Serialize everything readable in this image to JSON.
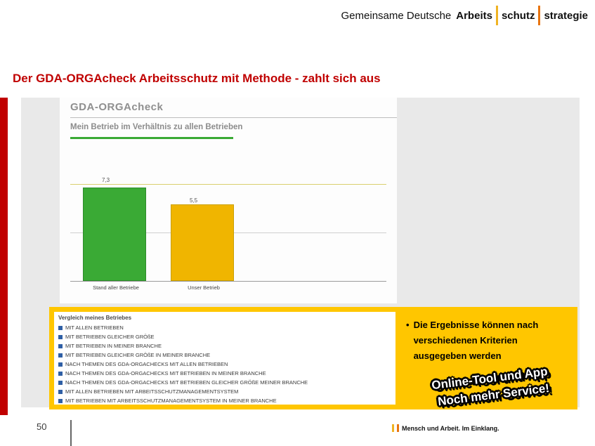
{
  "logo": {
    "prefix": "Gemeinsame Deutsche",
    "word1": "Arbeits",
    "word2": "schutz",
    "word3": "strategie",
    "bar1_color": "#f0b323",
    "bar2_color": "#e87511"
  },
  "title": "Der GDA-ORGAcheck Arbeitsschutz mit Methode - zahlt sich aus",
  "title_color": "#c00000",
  "screenshot": {
    "app_title": "GDA-ORGAcheck",
    "section_title": "Mein Betrieb im Verhältnis zu allen Betrieben",
    "bars": [
      {
        "label": "Stand aller Betriebe",
        "value": "7,3",
        "color": "#3aaa35"
      },
      {
        "label": "Unser Betrieb",
        "value": "5,5",
        "color": "#f0b500"
      }
    ]
  },
  "comparison": {
    "title": "Vergleich meines Betriebes",
    "items": [
      "MIT ALLEN BETRIEBEN",
      "MIT BETRIEBEN GLEICHER GRÖßE",
      "MIT BETRIEBEN IN MEINER BRANCHE",
      "MIT BETRIEBEN GLEICHER GRÖßE IN MEINER BRANCHE",
      "NACH THEMEN DES GDA-ORGACHECKS MIT ALLEN BETRIEBEN",
      "NACH THEMEN DES GDA-ORGACHECKS MIT BETRIEBEN IN MEINER BRANCHE",
      "NACH THEMEN DES GDA-ORGACHECKS MIT BETRIEBEN GLEICHER GRÖßE MEINER BRANCHE",
      "MIT ALLEN BETRIEBEN MIT ARBEITSSCHUTZMANAGEMENTSYSTEM",
      "MIT BETRIEBEN MIT ARBEITSSCHUTZMANAGEMENTSYSTEM IN MEINER BRANCHE"
    ]
  },
  "callout": {
    "bullet": "•",
    "text": "Die Ergebnisse können nach verschiedenen Kriterien ausgegeben werden",
    "background": "#ffc600"
  },
  "ribbon": {
    "line1": "Online-Tool und App",
    "line2": "Noch mehr Service!"
  },
  "footer": {
    "page_number": "50",
    "brand": "Mensch und Arbeit. Im Einklang."
  },
  "chart_data": {
    "type": "bar",
    "categories": [
      "Stand aller Betriebe",
      "Unser Betrieb"
    ],
    "values": [
      7.3,
      5.5
    ],
    "value_labels": [
      "7,3",
      "5,5"
    ],
    "bar_colors": [
      "#3aaa35",
      "#f0b500"
    ],
    "title": "Mein Betrieb im Verhältnis zu allen Betrieben",
    "xlabel": "",
    "ylabel": "",
    "ylim": [
      0,
      8
    ],
    "grid": true,
    "legend_position": "none"
  }
}
